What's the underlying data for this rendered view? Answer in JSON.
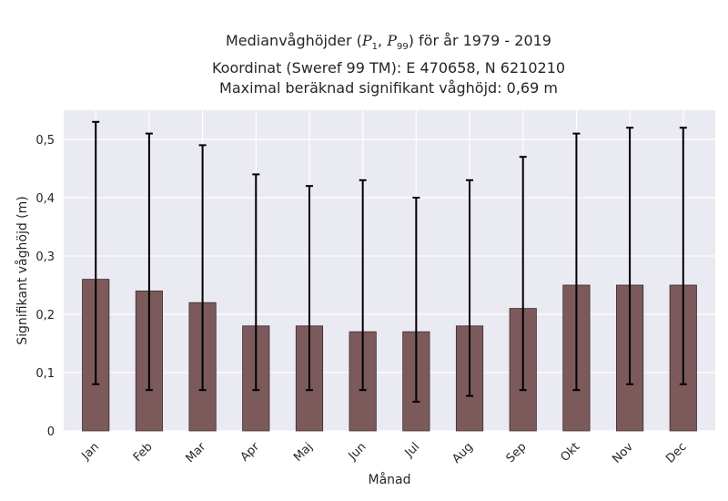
{
  "title": {
    "line1_prefix": "Medianvåghöjder (",
    "p_symbol": "P",
    "p1_sub": "1",
    "p99_sub": "99",
    "line1_suffix": ") för år 1979 - 2019",
    "line2": "Koordinat (Sweref 99 TM): E 470658, N 6210210",
    "line3": "Maximal beräknad signifikant våghöjd: 0,69 m"
  },
  "chart_data": {
    "type": "bar",
    "title": "Medianvåghöjder (P1, P99) för år 1979 - 2019\nKoordinat (Sweref 99 TM): E 470658, N 6210210\nMaximal beräknad signifikant våghöjd: 0,69 m",
    "xlabel": "Månad",
    "ylabel": "Signifikant våghöjd (m)",
    "categories": [
      "Jan",
      "Feb",
      "Mar",
      "Apr",
      "Maj",
      "Jun",
      "Jul",
      "Aug",
      "Sep",
      "Okt",
      "Nov",
      "Dec"
    ],
    "values": [
      0.26,
      0.24,
      0.22,
      0.18,
      0.18,
      0.17,
      0.17,
      0.18,
      0.21,
      0.25,
      0.25,
      0.25
    ],
    "error_low": [
      0.08,
      0.07,
      0.07,
      0.07,
      0.07,
      0.07,
      0.05,
      0.06,
      0.07,
      0.07,
      0.08,
      0.08
    ],
    "error_high": [
      0.53,
      0.51,
      0.49,
      0.44,
      0.42,
      0.43,
      0.4,
      0.43,
      0.47,
      0.51,
      0.52,
      0.52
    ],
    "ylim": [
      0,
      0.55
    ],
    "yticks": [
      "0",
      "0,1",
      "0,2",
      "0,3",
      "0,4",
      "0,5"
    ],
    "ytick_values": [
      0,
      0.1,
      0.2,
      0.3,
      0.4,
      0.5
    ],
    "grid": true,
    "colors": {
      "bar": "#7c5a5c",
      "bar_edge": "#3c2a2b",
      "error_bar": "#000000",
      "plot_bg": "#eaeaf2",
      "grid": "#ffffff"
    }
  }
}
